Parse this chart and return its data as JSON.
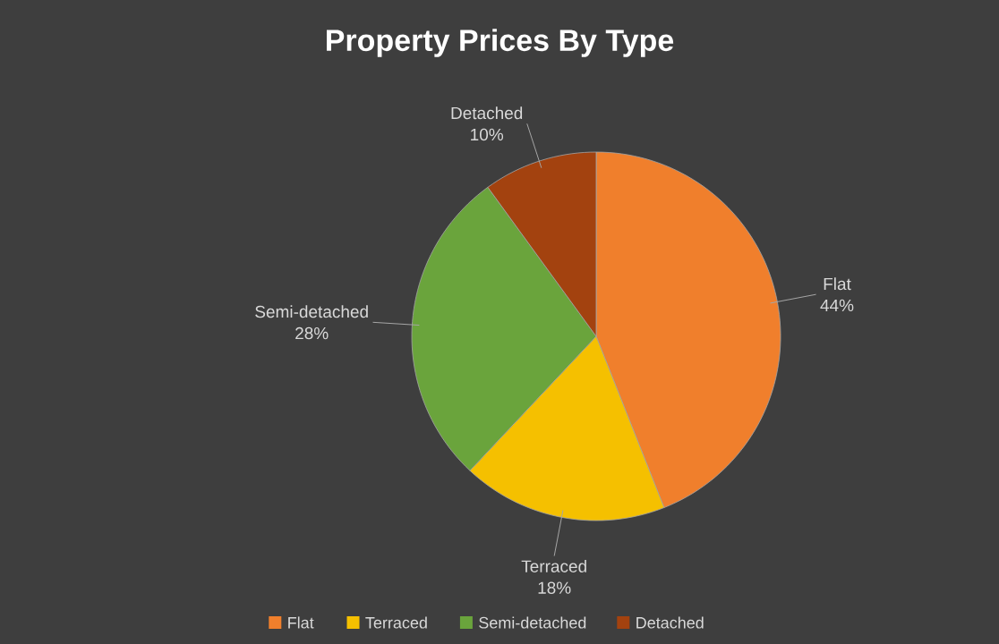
{
  "chart_data": {
    "type": "pie",
    "title": "Property Prices By Type",
    "categories": [
      "Flat",
      "Terraced",
      "Semi-detached",
      "Detached"
    ],
    "values": [
      44,
      18,
      28,
      10
    ],
    "value_labels": [
      "44%",
      "18%",
      "28%",
      "10%"
    ],
    "colors": [
      "#f07f2c",
      "#f5c000",
      "#6aa43c",
      "#a3420f"
    ],
    "legend": "bottom"
  }
}
